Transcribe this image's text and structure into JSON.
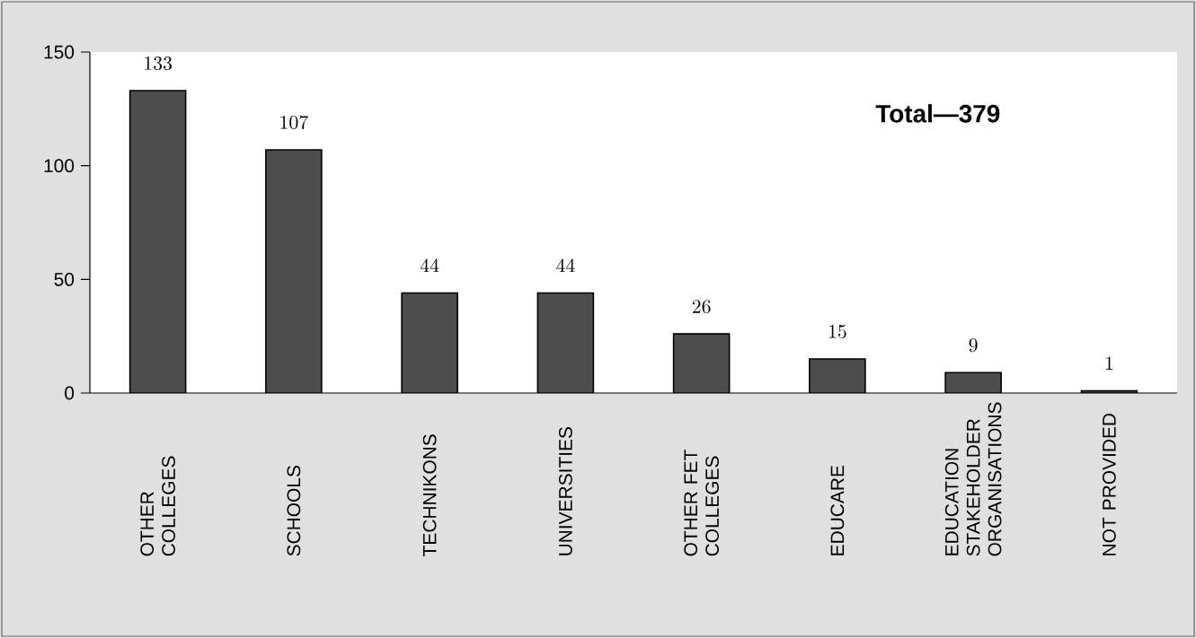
{
  "chart_data": {
    "type": "bar",
    "categories": [
      "OTHER COLLEGES",
      "SCHOOLS",
      "TECHNIKONS",
      "UNIVERSITIES",
      "OTHER FET COLLEGES",
      "EDUCARE",
      "EDUCATION STAKEHOLDER ORGANISATIONS",
      "NOT PROVIDED"
    ],
    "values": [
      133,
      107,
      44,
      44,
      26,
      15,
      9,
      1
    ],
    "color": "#4d4d4d",
    "ylim": [
      0,
      150
    ],
    "yticks": [
      0,
      50,
      100,
      150
    ],
    "data_labels": true,
    "annotations": [
      "Total—379"
    ]
  }
}
